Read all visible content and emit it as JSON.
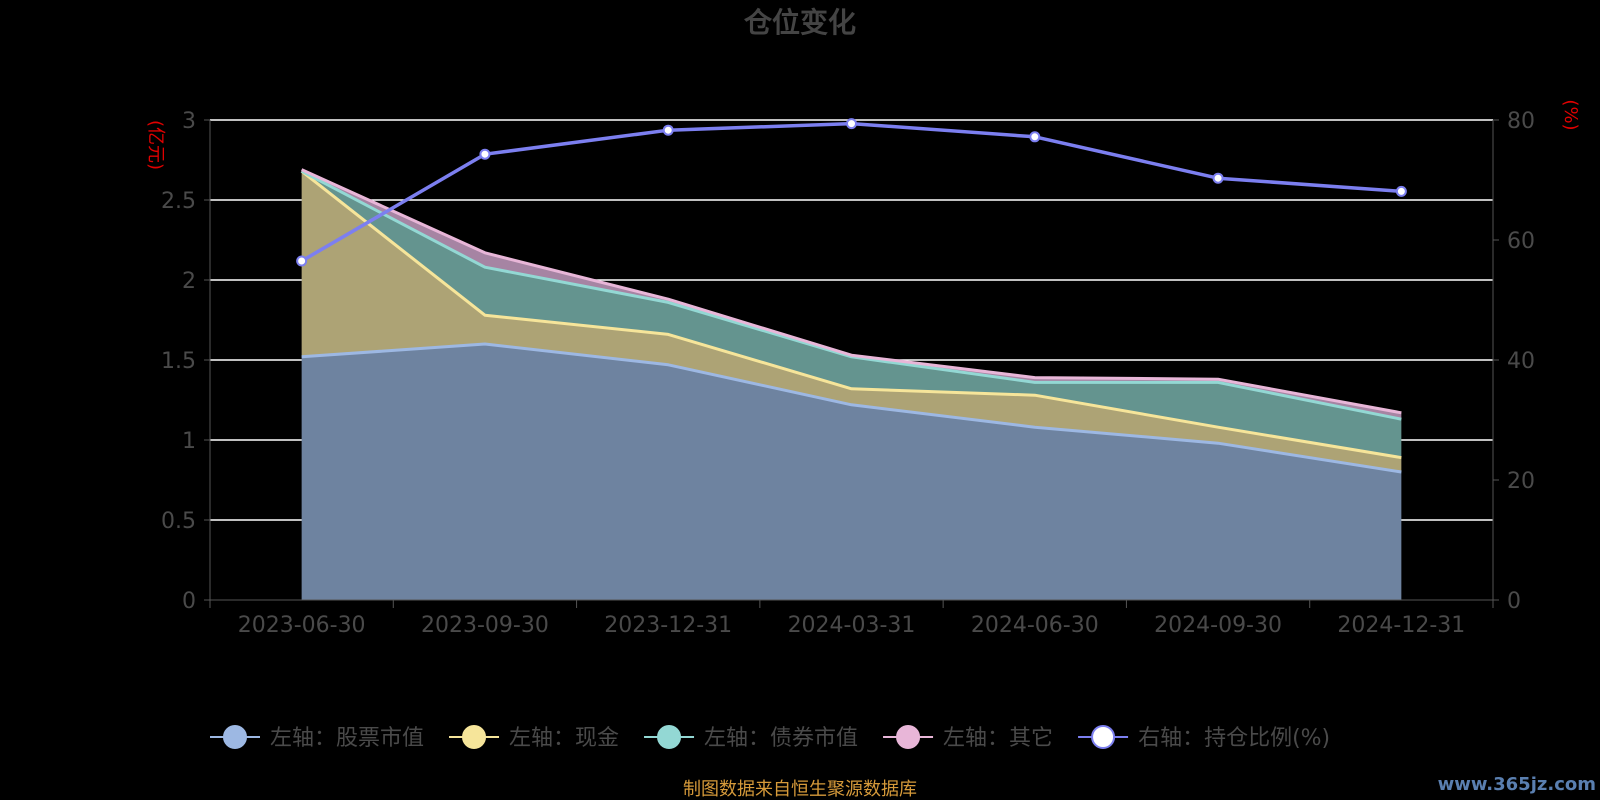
{
  "colors": {
    "stock": "#9db8e3",
    "cash": "#f6e59a",
    "bond": "#93d8d4",
    "other": "#e8b6d8",
    "ratio": "#7c7ff0",
    "stock_fill": "#6e83a0",
    "cash_fill": "#ada375",
    "bond_fill": "#64948f",
    "other_fill": "#a684a3"
  },
  "footer": "制图数据来自恒生聚源数据库",
  "watermark": "www.365jz.com",
  "chart_data": {
    "type": "area",
    "title": "仓位变化",
    "x": [
      "2023-06-30",
      "2023-09-30",
      "2023-12-31",
      "2024-03-31",
      "2024-06-30",
      "2024-09-30",
      "2024-12-31"
    ],
    "y_left": {
      "label": "(亿元)",
      "range": [
        0,
        3
      ],
      "ticks": [
        "0",
        "0.5",
        "1",
        "1.5",
        "2",
        "2.5",
        "3"
      ]
    },
    "y_right": {
      "label": "(%)",
      "range": [
        0,
        80
      ],
      "ticks": [
        "0",
        "20",
        "40",
        "60",
        "80"
      ]
    },
    "grid": true,
    "legend_position": "bottom",
    "series": [
      {
        "name": "左轴：股票市值",
        "axis": "left",
        "stacked": true,
        "values": [
          1.52,
          1.6,
          1.47,
          1.22,
          1.08,
          0.98,
          0.8
        ]
      },
      {
        "name": "左轴：现金",
        "axis": "left",
        "stacked": true,
        "values": [
          1.16,
          0.18,
          0.19,
          0.1,
          0.2,
          0.1,
          0.09
        ]
      },
      {
        "name": "左轴：债券市值",
        "axis": "left",
        "stacked": true,
        "values": [
          0,
          0.3,
          0.2,
          0.2,
          0.08,
          0.28,
          0.24
        ]
      },
      {
        "name": "左轴：其它",
        "axis": "left",
        "stacked": true,
        "values": [
          0.01,
          0.09,
          0.02,
          0.01,
          0.03,
          0.02,
          0.04
        ]
      },
      {
        "name": "右轴：持仓比例(%)",
        "axis": "right",
        "type": "line",
        "values": [
          56.5,
          74.3,
          78.3,
          79.4,
          77.2,
          70.3,
          68.1
        ]
      }
    ]
  }
}
